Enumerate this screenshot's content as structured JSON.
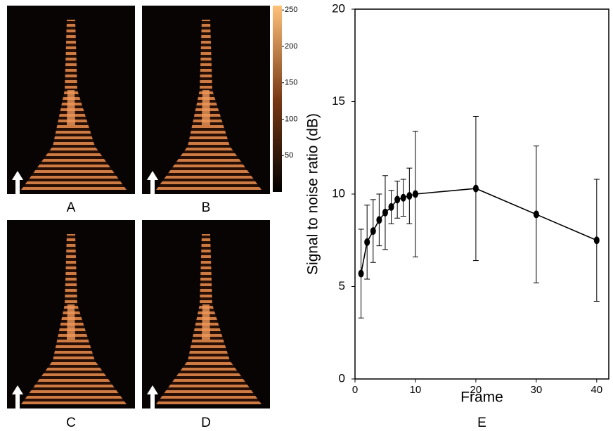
{
  "panel_labels": [
    "A",
    "B",
    "C",
    "D"
  ],
  "colorbar": {
    "lim": [
      0,
      256
    ],
    "ticks": [
      50,
      100,
      150,
      200,
      250
    ]
  },
  "chart_data": {
    "type": "errorline",
    "label": "E",
    "xlabel": "Frame",
    "ylabel": "Signal to noise ratio (dB)",
    "x": [
      1,
      2,
      3,
      4,
      5,
      6,
      7,
      8,
      9,
      10,
      20,
      30,
      40
    ],
    "values": [
      5.7,
      7.4,
      8.0,
      8.6,
      9.0,
      9.3,
      9.7,
      9.8,
      9.9,
      10.0,
      10.3,
      8.9,
      7.5
    ],
    "errors": [
      2.4,
      2.0,
      1.7,
      1.4,
      2.0,
      0.9,
      1.0,
      1.0,
      1.5,
      3.4,
      3.9,
      3.7,
      3.3
    ],
    "color": "#000000",
    "xlim": [
      0,
      42
    ],
    "xticks": [
      0,
      10,
      20,
      30,
      40
    ],
    "ylim": [
      0,
      20
    ],
    "yticks": [
      0,
      5,
      10,
      15,
      20
    ]
  }
}
